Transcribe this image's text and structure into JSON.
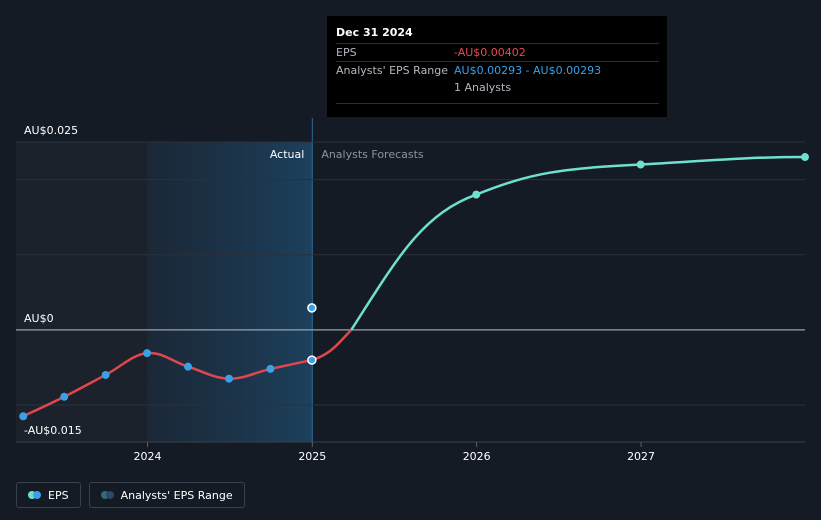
{
  "chart_data": {
    "type": "line",
    "y_axis": {
      "min": -0.017,
      "max": 0.0265,
      "labeled_ticks": [
        {
          "value": 0.025,
          "label": "AU$0.025"
        },
        {
          "value": 0,
          "label": "AU$0"
        },
        {
          "value": -0.015,
          "label": "-AU$0.015"
        }
      ],
      "grid_values": [
        0.025,
        0.02,
        0.01,
        0,
        -0.01
      ]
    },
    "x_axis": {
      "min": "2023-03-15",
      "max": "2027-12-31",
      "ticks": [
        {
          "value": "2024-01-01",
          "label": "2024"
        },
        {
          "value": "2025-01-01",
          "label": "2025"
        },
        {
          "value": "2026-01-01",
          "label": "2026"
        },
        {
          "value": "2027-01-01",
          "label": "2027"
        }
      ]
    },
    "regions": {
      "actual_label": "Actual",
      "forecast_label": "Analysts Forecasts",
      "highlight_start": "2024-01-01",
      "divider": "2025-01-01"
    },
    "series": [
      {
        "name": "EPS",
        "color": "#e0474c",
        "points": [
          {
            "x": "2023-03-31",
            "y": -0.0115
          },
          {
            "x": "2023-06-30",
            "y": -0.0089
          },
          {
            "x": "2023-09-30",
            "y": -0.006
          },
          {
            "x": "2023-12-31",
            "y": -0.0031
          },
          {
            "x": "2024-03-31",
            "y": -0.0049
          },
          {
            "x": "2024-06-30",
            "y": -0.0065
          },
          {
            "x": "2024-09-30",
            "y": -0.0052
          },
          {
            "x": "2024-12-31",
            "y": -0.00402
          }
        ]
      },
      {
        "name": "EPS forecast",
        "color": "#6ee0cf",
        "points": [
          {
            "x": "2024-12-31",
            "y": -0.00402
          },
          {
            "x": "2025-12-31",
            "y": 0.018
          },
          {
            "x": "2026-12-31",
            "y": 0.022
          },
          {
            "x": "2027-12-31",
            "y": 0.023
          }
        ]
      },
      {
        "name": "Analysts' EPS Range",
        "color": "#3aa0e8",
        "points": [
          {
            "x": "2024-12-31",
            "y": 0.00293
          }
        ]
      }
    ]
  },
  "tooltip": {
    "date": "Dec 31 2024",
    "eps_label": "EPS",
    "eps_value": "-AU$0.00402",
    "range_label": "Analysts' EPS Range",
    "range_value": "AU$0.00293 - AU$0.00293",
    "analysts_count": "1 Analysts"
  },
  "legend": {
    "eps_label": "EPS",
    "range_label": "Analysts' EPS Range"
  },
  "colors": {
    "background": "#151b24",
    "past_shade": "#1b222b",
    "highlight": "#1a3a55",
    "grid": "#2a313a",
    "zero_line": "#9aa1ab",
    "eps_line": "#e0474c",
    "forecast_line": "#6ee0cf",
    "point": "#3aa0e8"
  }
}
